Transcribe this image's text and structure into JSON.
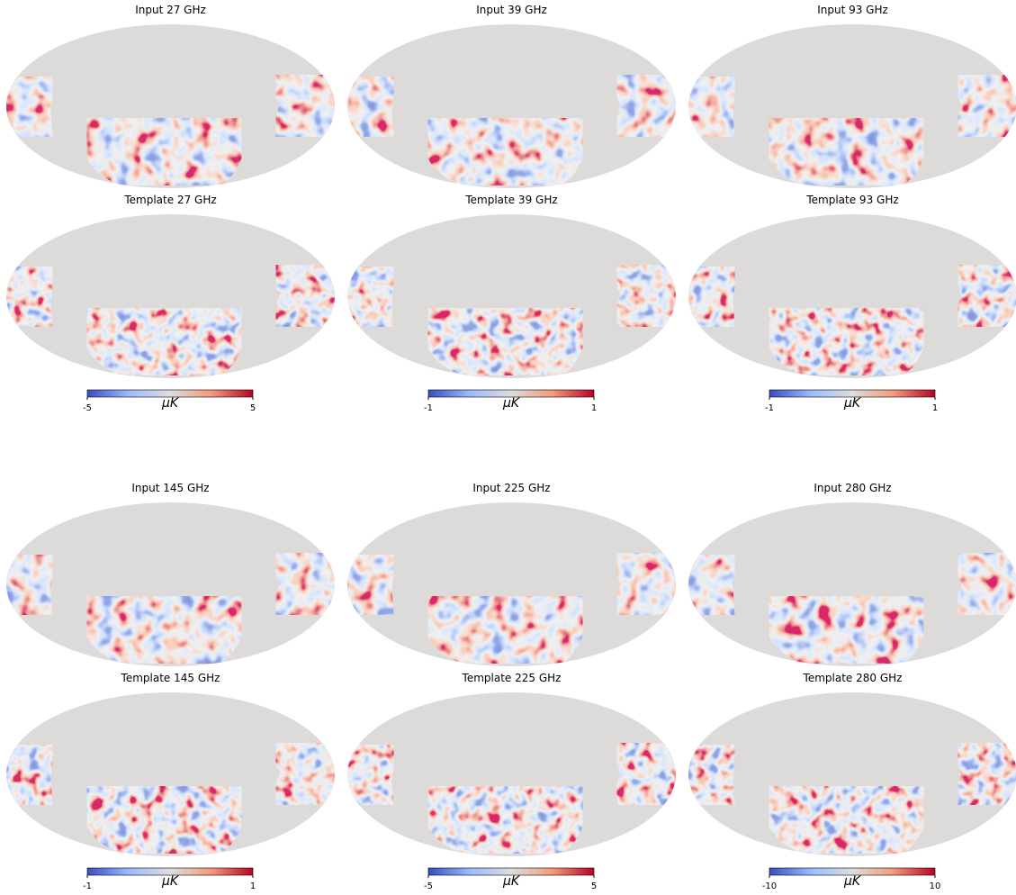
{
  "panels": [
    {
      "title": "Input 27 GHz"
    },
    {
      "title": "Input 39 GHz"
    },
    {
      "title": "Input 93 GHz"
    },
    {
      "title": "Template 27 GHz"
    },
    {
      "title": "Template 39 GHz"
    },
    {
      "title": "Template 93 GHz"
    },
    {
      "title": "Input 145 GHz"
    },
    {
      "title": "Input 225 GHz"
    },
    {
      "title": "Input 280 GHz"
    },
    {
      "title": "Template 145 GHz"
    },
    {
      "title": "Template 225 GHz"
    },
    {
      "title": "Template 280 GHz"
    }
  ],
  "colorbars": [
    {
      "label": "μK",
      "ticks": [
        -5,
        5
      ]
    },
    {
      "label": "μK",
      "ticks": [
        -1,
        1
      ]
    },
    {
      "label": "μK",
      "ticks": [
        -1,
        1
      ]
    },
    {
      "label": "μK",
      "ticks": [
        -1,
        1
      ]
    },
    {
      "label": "μK",
      "ticks": [
        -5,
        5
      ]
    },
    {
      "label": "μK",
      "ticks": [
        -10,
        10
      ]
    }
  ]
}
